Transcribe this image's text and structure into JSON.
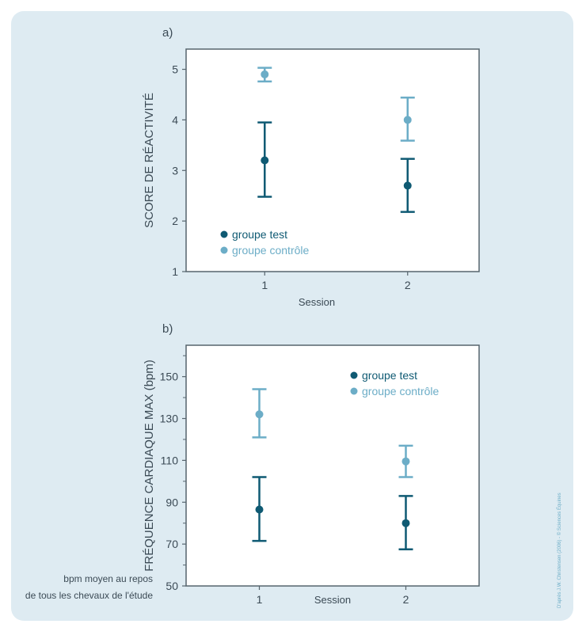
{
  "colors": {
    "groupe_test": "#0f5a73",
    "groupe_controle": "#6cadc7",
    "axis": "#56646d",
    "panel": "#deebf2"
  },
  "credit": "D'après J.W. Christensen (2006) - © Sciences Équines",
  "chart_data": [
    {
      "panel_label": "a)",
      "type": "scatter",
      "error_bars": true,
      "xlabel": "Session",
      "ylabel": "SCORE DE RÉACTIVITÉ",
      "x_ticks": [
        1,
        2
      ],
      "y_ticks": [
        1,
        2,
        3,
        4,
        5
      ],
      "xlim": [
        0.45,
        2.5
      ],
      "ylim": [
        1,
        5.4
      ],
      "legend_position": "bottom-left",
      "series": [
        {
          "name": "groupe test",
          "color": "#0f5a73",
          "points": [
            {
              "x": 1,
              "y": 3.2,
              "low": 2.48,
              "high": 3.95
            },
            {
              "x": 2,
              "y": 2.7,
              "low": 2.18,
              "high": 3.23
            }
          ]
        },
        {
          "name": "groupe contrôle",
          "color": "#6cadc7",
          "points": [
            {
              "x": 1,
              "y": 4.9,
              "low": 4.76,
              "high": 5.03
            },
            {
              "x": 2,
              "y": 4.0,
              "low": 3.59,
              "high": 4.44
            }
          ]
        }
      ]
    },
    {
      "panel_label": "b)",
      "type": "scatter",
      "error_bars": true,
      "xlabel": "Session",
      "ylabel": "FRÉQUENCE CARDIAQUE MAX (bpm)",
      "x_ticks": [
        1,
        2
      ],
      "y_ticks": [
        50,
        70,
        90,
        110,
        130,
        150
      ],
      "y_minor_ticks": [
        60,
        80,
        100,
        120,
        140,
        160
      ],
      "xlim": [
        0.5,
        2.5
      ],
      "ylim": [
        50,
        165
      ],
      "legend_position": "top-right",
      "annotation": [
        "bpm moyen au repos",
        "de tous les chevaux de l'étude"
      ],
      "series": [
        {
          "name": "groupe test",
          "color": "#0f5a73",
          "points": [
            {
              "x": 1,
              "y": 86.5,
              "low": 71.5,
              "high": 102
            },
            {
              "x": 2,
              "y": 80,
              "low": 67.5,
              "high": 93
            }
          ]
        },
        {
          "name": "groupe contrôle",
          "color": "#6cadc7",
          "points": [
            {
              "x": 1,
              "y": 132,
              "low": 121,
              "high": 144
            },
            {
              "x": 2,
              "y": 109.5,
              "low": 102,
              "high": 117
            }
          ]
        }
      ]
    }
  ]
}
